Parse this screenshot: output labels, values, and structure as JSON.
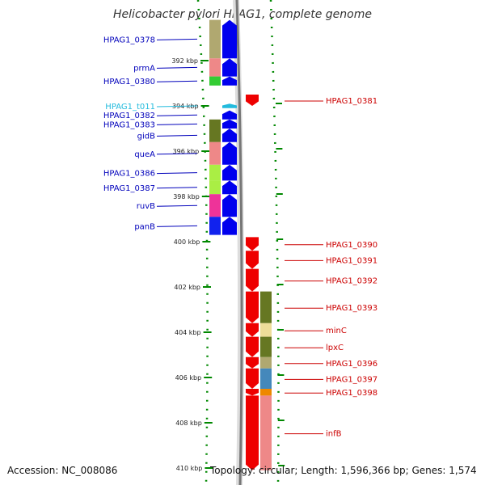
{
  "title": "Helicobacter pylori HPAG1, complete genome",
  "accession_text": "Accession: NC_008086",
  "topology_text": "Topology: circular; Length: 1,596,366 bp; Genes: 1,574",
  "colors": {
    "left_label": "#0000bb",
    "trna_label": "#22bbdd",
    "right_label": "#cc0000",
    "forward_gene": "#ee0000",
    "reverse_gene": "#0000ee",
    "tick": "#008800"
  },
  "axis": {
    "unit": "kbp",
    "labeled_ticks": [
      {
        "kbp": 392,
        "label": "392 kbp"
      },
      {
        "kbp": 394,
        "label": "394 kbp"
      },
      {
        "kbp": 396,
        "label": "396 kbp"
      },
      {
        "kbp": 398,
        "label": "398 kbp"
      },
      {
        "kbp": 400,
        "label": "400 kbp"
      },
      {
        "kbp": 402,
        "label": "402 kbp"
      },
      {
        "kbp": 404,
        "label": "404 kbp"
      },
      {
        "kbp": 406,
        "label": "406 kbp"
      },
      {
        "kbp": 408,
        "label": "408 kbp"
      },
      {
        "kbp": 410,
        "label": "410 kbp"
      }
    ]
  },
  "left_genes": [
    {
      "label": "HPAG1_0378",
      "start": 390.2,
      "end": 391.9,
      "cog_color": "#b0a870",
      "kind": "gene"
    },
    {
      "label": "prmA",
      "start": 391.9,
      "end": 392.7,
      "cog_color": "#ee8888",
      "kind": "gene"
    },
    {
      "label": "HPAG1_0380",
      "start": 392.7,
      "end": 393.1,
      "cog_color": "#33cc33",
      "kind": "gene"
    },
    {
      "label": "HPAG1_t011",
      "start": 393.9,
      "end": 394.1,
      "cog_color": "",
      "kind": "trna"
    },
    {
      "label": "HPAG1_0382",
      "start": 394.2,
      "end": 394.6,
      "cog_color": "",
      "kind": "gene"
    },
    {
      "label": "HPAG1_0383",
      "start": 394.6,
      "end": 395.0,
      "cog_color": "#667722",
      "kind": "gene"
    },
    {
      "label": "gidB",
      "start": 395.0,
      "end": 395.6,
      "cog_color": "#667722",
      "kind": "gene"
    },
    {
      "label": "queA",
      "start": 395.6,
      "end": 396.6,
      "cog_color": "#ee8888",
      "kind": "gene"
    },
    {
      "label": "HPAG1_0386",
      "start": 396.6,
      "end": 397.3,
      "cog_color": "#aaee44",
      "kind": "gene"
    },
    {
      "label": "HPAG1_0387",
      "start": 397.3,
      "end": 397.9,
      "cog_color": "#aaee44",
      "kind": "gene"
    },
    {
      "label": "ruvB",
      "start": 397.9,
      "end": 398.9,
      "cog_color": "#ee3399",
      "kind": "gene"
    },
    {
      "label": "panB",
      "start": 398.9,
      "end": 399.7,
      "cog_color": "#1122ee",
      "kind": "gene"
    }
  ],
  "right_genes": [
    {
      "label": "HPAG1_0381",
      "start": 393.5,
      "end": 394.0,
      "cog_color": ""
    },
    {
      "label": "HPAG1_0390",
      "start": 399.8,
      "end": 400.4,
      "cog_color": ""
    },
    {
      "label": "HPAG1_0391",
      "start": 400.4,
      "end": 401.2,
      "cog_color": ""
    },
    {
      "label": "HPAG1_0392",
      "start": 401.2,
      "end": 402.2,
      "cog_color": ""
    },
    {
      "label": "HPAG1_0393",
      "start": 402.2,
      "end": 403.6,
      "cog_color": "#667722"
    },
    {
      "label": "minC",
      "start": 403.6,
      "end": 404.2,
      "cog_color": "#eedd99"
    },
    {
      "label": "lpxC",
      "start": 404.2,
      "end": 405.1,
      "cog_color": "#667722"
    },
    {
      "label": "HPAG1_0396",
      "start": 405.1,
      "end": 405.6,
      "cog_color": "#b0a870"
    },
    {
      "label": "HPAG1_0397",
      "start": 405.6,
      "end": 406.5,
      "cog_color": "#4488bb"
    },
    {
      "label": "HPAG1_0398",
      "start": 406.5,
      "end": 406.8,
      "cog_color": "#ee8800"
    },
    {
      "label": "infB",
      "start": 406.8,
      "end": 410.1,
      "cog_color": "#ee8888"
    }
  ]
}
